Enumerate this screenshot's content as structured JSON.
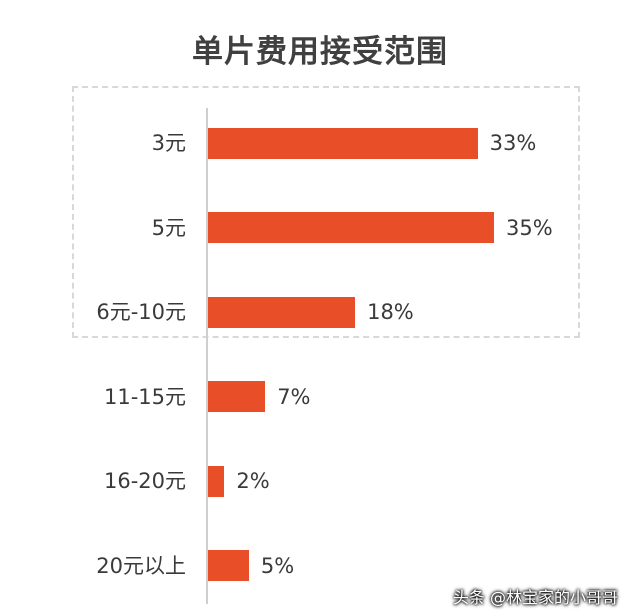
{
  "chart_data": {
    "type": "bar",
    "orientation": "horizontal",
    "title": "单片费用接受范围",
    "categories": [
      "3元",
      "5元",
      "6元-10元",
      "11-15元",
      "16-20元",
      "20元以上"
    ],
    "values": [
      33,
      35,
      18,
      7,
      2,
      5
    ],
    "value_labels": [
      "33%",
      "35%",
      "18%",
      "7%",
      "2%",
      "5%"
    ],
    "highlighted_categories": [
      "3元",
      "5元",
      "6元-10元"
    ],
    "xlabel": "",
    "ylabel": "",
    "grid": false,
    "bar_color": "#e84e27"
  },
  "watermark": "头条 @林宝家的小哥哥"
}
